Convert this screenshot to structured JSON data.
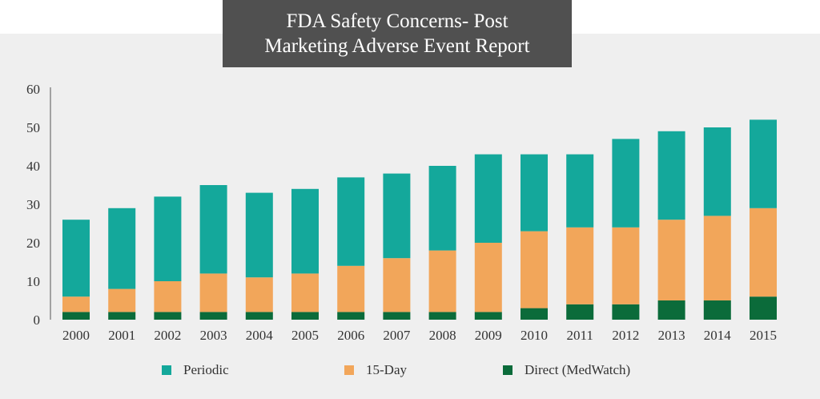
{
  "chart_data": {
    "type": "bar",
    "stacked": true,
    "title": "FDA Safety Concerns- Post Marketing Adverse Event Report",
    "title_lines": [
      "FDA Safety Concerns- Post",
      "Marketing Adverse Event Report"
    ],
    "categories": [
      "2000",
      "2001",
      "2002",
      "2003",
      "2004",
      "2005",
      "2006",
      "2007",
      "2008",
      "2009",
      "2010",
      "2011",
      "2012",
      "2013",
      "2014",
      "2015"
    ],
    "series": [
      {
        "name": "Direct (MedWatch)",
        "color": "#0b6b3a",
        "values": [
          2,
          2,
          2,
          2,
          2,
          2,
          2,
          2,
          2,
          2,
          3,
          4,
          4,
          5,
          5,
          6
        ]
      },
      {
        "name": "15-Day",
        "color": "#f2a65a",
        "values": [
          4,
          6,
          8,
          10,
          9,
          10,
          12,
          14,
          16,
          18,
          20,
          20,
          20,
          21,
          22,
          23
        ]
      },
      {
        "name": "Periodic",
        "color": "#14a89b",
        "values": [
          20,
          21,
          22,
          23,
          22,
          22,
          23,
          22,
          22,
          23,
          20,
          19,
          23,
          23,
          23,
          23
        ]
      }
    ],
    "legend_order": [
      "Periodic",
      "15-Day",
      "Direct (MedWatch)"
    ],
    "legend_position": "bottom",
    "ylim": [
      0,
      60
    ],
    "yticks": [
      "0",
      "10",
      "20",
      "30",
      "40",
      "50",
      "60"
    ],
    "grid": false,
    "xlabel": "",
    "ylabel": ""
  }
}
